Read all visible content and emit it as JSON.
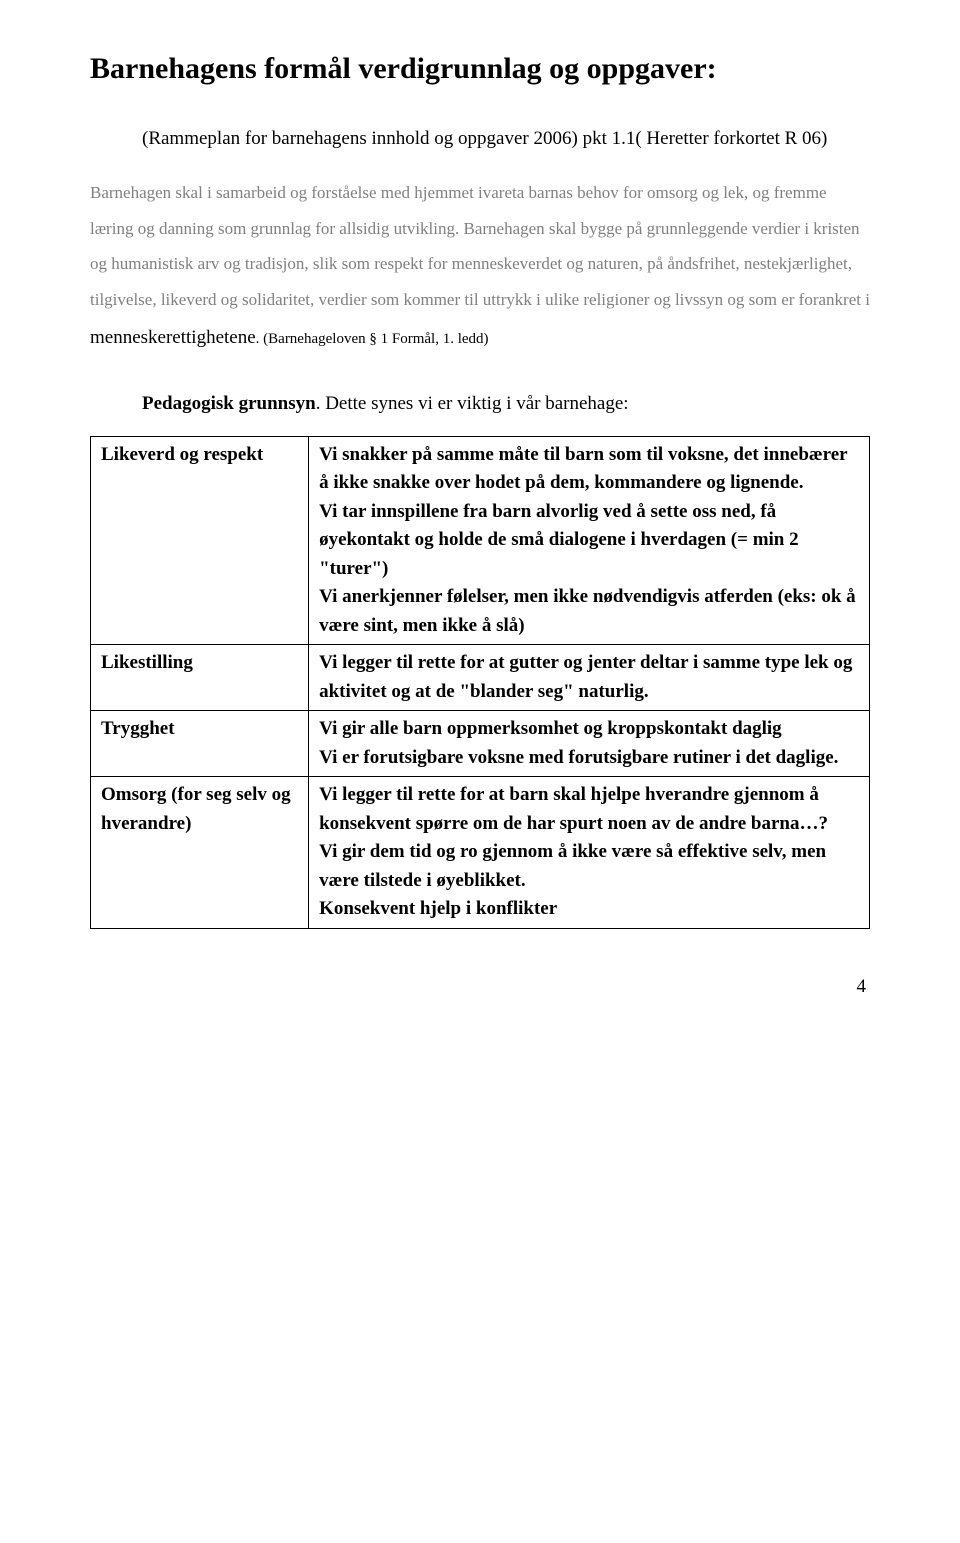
{
  "title": "Barnehagens formål verdigrunnlag og oppgaver:",
  "subtitle": "(Rammeplan for barnehagens innhold og oppgaver 2006) pkt 1.1( Heretter forkortet R 06)",
  "body_p1": "Barnehagen skal i samarbeid og forståelse med hjemmet ivareta barnas behov for omsorg og lek, og fremme læring og danning som grunnlag for allsidig utvikling. Barnehagen skal bygge på grunnleggende verdier i kristen og humanistisk arv og tradisjon, slik som respekt for menneskeverdet og naturen, på åndsfrihet, nestekjærlighet, tilgivelse, likeverd og solidaritet, verdier som kommer til uttrykk i ulike religioner og livssyn og som er forankret i ",
  "body_p1_black": "menneskerettighetene",
  "body_p1_small": ". (Barnehageloven § 1 Formål, 1. ledd)",
  "pedagogy_bold": "Pedagogisk grunnsyn",
  "pedagogy_rest": ". Dette synes vi er viktig i vår barnehage:",
  "rows": [
    {
      "left": "Likeverd og respekt",
      "right": "Vi snakker på samme måte til barn som til voksne, det innebærer å ikke snakke over hodet på dem, kommandere og lignende.\nVi tar innspillene fra barn alvorlig ved å sette oss ned, få øyekontakt og holde de små dialogene i hverdagen (= min 2 \"turer\")\nVi anerkjenner følelser, men ikke nødvendigvis atferden (eks: ok å være sint, men ikke å slå)"
    },
    {
      "left": "Likestilling",
      "right": "Vi legger til rette for at gutter og jenter deltar i samme type lek og aktivitet og at de \"blander seg\" naturlig."
    },
    {
      "left": "Trygghet",
      "right": "Vi gir alle barn oppmerksomhet og kroppskontakt daglig\nVi er forutsigbare voksne med forutsigbare rutiner i det daglige."
    },
    {
      "left": "Omsorg (for seg selv og hverandre)",
      "right": "Vi legger til rette for at barn skal hjelpe hverandre gjennom å konsekvent spørre om de har spurt noen av de andre barna…?\nVi gir dem tid og ro gjennom å ikke være så effektive selv, men være tilstede i øyeblikket.\nKonsekvent hjelp i konflikter"
    }
  ],
  "page_number": "4"
}
